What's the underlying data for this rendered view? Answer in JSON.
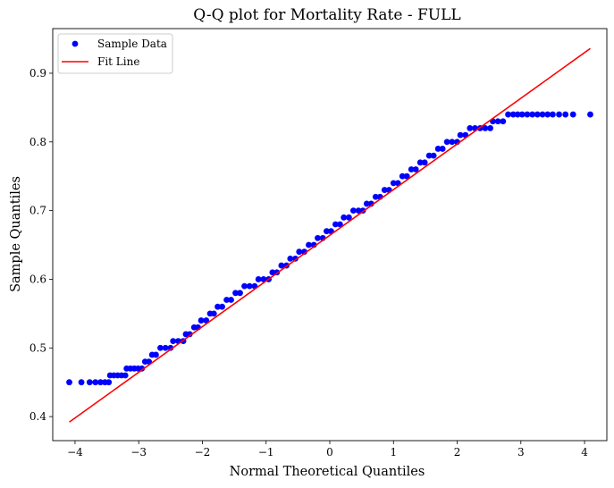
{
  "chart_data": {
    "type": "scatter",
    "title": "Q-Q plot for Mortality Rate - FULL",
    "xlabel": "Normal Theoretical Quantiles",
    "ylabel": "Sample Quantiles",
    "xlim": [
      -4.35,
      4.35
    ],
    "ylim": [
      0.365,
      0.965
    ],
    "xticks": [
      -4,
      -3,
      -2,
      -1,
      0,
      1,
      2,
      3,
      4
    ],
    "yticks": [
      0.4,
      0.5,
      0.6,
      0.7,
      0.8,
      0.9
    ],
    "xtick_labels": [
      "−4",
      "−3",
      "−2",
      "−1",
      "0",
      "1",
      "2",
      "3",
      "4"
    ],
    "ytick_labels": [
      "0.4",
      "0.5",
      "0.6",
      "0.7",
      "0.8",
      "0.9"
    ],
    "grid": false,
    "legend_position": "top-left",
    "series": [
      {
        "name": "Sample Data",
        "kind": "scatter",
        "color": "#0000ff",
        "points": [
          [
            -4.09,
            0.45
          ],
          [
            -3.9,
            0.45
          ],
          [
            -3.77,
            0.45
          ],
          [
            -3.68,
            0.45
          ],
          [
            -3.6,
            0.45
          ],
          [
            -3.53,
            0.45
          ],
          [
            -3.47,
            0.45
          ],
          [
            -3.45,
            0.46
          ],
          [
            -3.39,
            0.46
          ],
          [
            -3.33,
            0.46
          ],
          [
            -3.27,
            0.46
          ],
          [
            -3.21,
            0.46
          ],
          [
            -3.19,
            0.47
          ],
          [
            -3.13,
            0.47
          ],
          [
            -3.07,
            0.47
          ],
          [
            -3.01,
            0.47
          ],
          [
            -2.95,
            0.47
          ],
          [
            -2.9,
            0.48
          ],
          [
            -2.84,
            0.48
          ],
          [
            -2.79,
            0.49
          ],
          [
            -2.73,
            0.49
          ],
          [
            -2.66,
            0.5
          ],
          [
            -2.58,
            0.5
          ],
          [
            -2.5,
            0.5
          ],
          [
            -2.46,
            0.51
          ],
          [
            -2.38,
            0.51
          ],
          [
            -2.3,
            0.51
          ],
          [
            -2.26,
            0.52
          ],
          [
            -2.2,
            0.52
          ],
          [
            -2.13,
            0.53
          ],
          [
            -2.07,
            0.53
          ],
          [
            -2.02,
            0.54
          ],
          [
            -1.94,
            0.54
          ],
          [
            -1.88,
            0.55
          ],
          [
            -1.82,
            0.55
          ],
          [
            -1.76,
            0.56
          ],
          [
            -1.69,
            0.56
          ],
          [
            -1.62,
            0.57
          ],
          [
            -1.55,
            0.57
          ],
          [
            -1.48,
            0.58
          ],
          [
            -1.41,
            0.58
          ],
          [
            -1.34,
            0.59
          ],
          [
            -1.26,
            0.59
          ],
          [
            -1.18,
            0.59
          ],
          [
            -1.12,
            0.6
          ],
          [
            -1.04,
            0.6
          ],
          [
            -0.96,
            0.6
          ],
          [
            -0.9,
            0.61
          ],
          [
            -0.83,
            0.61
          ],
          [
            -0.76,
            0.62
          ],
          [
            -0.68,
            0.62
          ],
          [
            -0.62,
            0.63
          ],
          [
            -0.54,
            0.63
          ],
          [
            -0.48,
            0.64
          ],
          [
            -0.4,
            0.64
          ],
          [
            -0.33,
            0.65
          ],
          [
            -0.25,
            0.65
          ],
          [
            -0.19,
            0.66
          ],
          [
            -0.11,
            0.66
          ],
          [
            -0.05,
            0.67
          ],
          [
            0.02,
            0.67
          ],
          [
            0.09,
            0.68
          ],
          [
            0.16,
            0.68
          ],
          [
            0.22,
            0.69
          ],
          [
            0.3,
            0.69
          ],
          [
            0.37,
            0.7
          ],
          [
            0.45,
            0.7
          ],
          [
            0.52,
            0.7
          ],
          [
            0.58,
            0.71
          ],
          [
            0.65,
            0.71
          ],
          [
            0.72,
            0.72
          ],
          [
            0.79,
            0.72
          ],
          [
            0.86,
            0.73
          ],
          [
            0.93,
            0.73
          ],
          [
            1.0,
            0.74
          ],
          [
            1.07,
            0.74
          ],
          [
            1.14,
            0.75
          ],
          [
            1.21,
            0.75
          ],
          [
            1.28,
            0.76
          ],
          [
            1.35,
            0.76
          ],
          [
            1.42,
            0.77
          ],
          [
            1.49,
            0.77
          ],
          [
            1.56,
            0.78
          ],
          [
            1.63,
            0.78
          ],
          [
            1.7,
            0.79
          ],
          [
            1.77,
            0.79
          ],
          [
            1.84,
            0.8
          ],
          [
            1.92,
            0.8
          ],
          [
            2.0,
            0.8
          ],
          [
            2.05,
            0.81
          ],
          [
            2.13,
            0.81
          ],
          [
            2.2,
            0.82
          ],
          [
            2.28,
            0.82
          ],
          [
            2.36,
            0.82
          ],
          [
            2.44,
            0.82
          ],
          [
            2.52,
            0.82
          ],
          [
            2.56,
            0.83
          ],
          [
            2.64,
            0.83
          ],
          [
            2.72,
            0.83
          ],
          [
            2.8,
            0.84
          ],
          [
            2.88,
            0.84
          ],
          [
            2.95,
            0.84
          ],
          [
            3.02,
            0.84
          ],
          [
            3.1,
            0.84
          ],
          [
            3.18,
            0.84
          ],
          [
            3.26,
            0.84
          ],
          [
            3.34,
            0.84
          ],
          [
            3.42,
            0.84
          ],
          [
            3.5,
            0.84
          ],
          [
            3.6,
            0.84
          ],
          [
            3.7,
            0.84
          ],
          [
            3.82,
            0.84
          ],
          [
            4.09,
            0.84
          ]
        ]
      },
      {
        "name": "Fit Line",
        "kind": "line",
        "color": "#ff0000",
        "x": [
          -4.09,
          4.09
        ],
        "y": [
          0.392,
          0.936
        ]
      }
    ]
  }
}
